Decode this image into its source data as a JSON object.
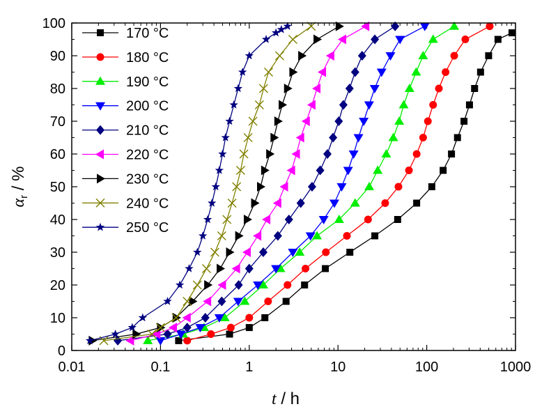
{
  "chart_data": {
    "type": "line",
    "xlabel": {
      "symbol": "t",
      "unit": " / h"
    },
    "ylabel": {
      "symbol": "α",
      "subscript": "r",
      "unit": " / %"
    },
    "xscale": "log",
    "xlim": [
      0.01,
      1000
    ],
    "ylim": [
      0,
      100
    ],
    "x_ticks": [
      "0.01",
      "0.1",
      "1",
      "10",
      "100",
      "1000"
    ],
    "y_ticks": [
      "0",
      "10",
      "20",
      "30",
      "40",
      "50",
      "60",
      "70",
      "80",
      "90",
      "100"
    ],
    "grid": false,
    "legend": "top-left",
    "series": [
      {
        "name": "170 °C",
        "color": "#000000",
        "marker": "square",
        "x": [
          0.16,
          0.6,
          1.0,
          1.5,
          2.6,
          4.2,
          7.2,
          13.6,
          26,
          47,
          77,
          114,
          153,
          190,
          222,
          263,
          303,
          346,
          404,
          498,
          635,
          913
        ],
        "y": [
          3,
          5,
          7,
          10,
          15,
          20,
          25,
          30,
          35,
          40,
          45,
          50,
          55,
          60,
          65,
          70,
          75,
          80,
          85,
          90,
          95,
          97
        ]
      },
      {
        "name": "180 °C",
        "color": "#ff0000",
        "marker": "circle",
        "x": [
          0.2,
          0.37,
          0.62,
          1.0,
          1.63,
          2.7,
          4.3,
          7.3,
          12.6,
          21.8,
          34,
          48,
          63,
          77,
          91,
          103,
          118,
          137,
          163,
          204,
          272,
          512
        ],
        "y": [
          3,
          5,
          7,
          10,
          15,
          20,
          25,
          30,
          35,
          40,
          45,
          50,
          55,
          60,
          65,
          70,
          75,
          80,
          85,
          90,
          95,
          99
        ]
      },
      {
        "name": "190 °C",
        "color": "#00ee00",
        "marker": "triangle-up",
        "x": [
          0.072,
          0.18,
          0.31,
          0.53,
          0.89,
          1.44,
          2.25,
          3.7,
          5.8,
          10.3,
          15.6,
          22.5,
          28,
          35,
          42,
          49,
          55,
          64,
          76,
          91,
          118,
          204
        ],
        "y": [
          3,
          5,
          7,
          10,
          15,
          20,
          25,
          30,
          35,
          40,
          45,
          50,
          55,
          60,
          65,
          70,
          75,
          80,
          85,
          90,
          95,
          99
        ]
      },
      {
        "name": "200 °C",
        "color": "#0000ff",
        "marker": "triangle-down",
        "x": [
          0.1,
          0.17,
          0.28,
          0.46,
          0.75,
          1.25,
          2.0,
          3.1,
          4.9,
          6.9,
          9.1,
          11,
          13,
          15,
          17,
          19.5,
          22.4,
          25.9,
          31,
          39,
          50,
          95
        ],
        "y": [
          3,
          5,
          7,
          10,
          15,
          20,
          25,
          30,
          35,
          40,
          45,
          50,
          55,
          60,
          65,
          70,
          75,
          80,
          85,
          90,
          95,
          99
        ]
      },
      {
        "name": "210 °C",
        "color": "#000080",
        "marker": "diamond",
        "x": [
          0.033,
          0.12,
          0.2,
          0.32,
          0.49,
          0.76,
          1.0,
          1.44,
          2.1,
          2.8,
          3.8,
          5.1,
          6.3,
          7.6,
          8.8,
          10.2,
          11.5,
          13.5,
          15.6,
          18.7,
          26,
          44
        ],
        "y": [
          3,
          5,
          7,
          10,
          15,
          20,
          25,
          30,
          35,
          40,
          45,
          50,
          55,
          60,
          65,
          70,
          75,
          80,
          85,
          90,
          95,
          99
        ]
      },
      {
        "name": "220 °C",
        "color": "#ff00ff",
        "marker": "triangle-left",
        "x": [
          0.046,
          0.091,
          0.14,
          0.2,
          0.34,
          0.5,
          0.72,
          0.95,
          1.25,
          1.58,
          2.1,
          2.5,
          3.0,
          3.4,
          3.8,
          4.4,
          5.1,
          5.8,
          6.7,
          8.3,
          11.3,
          20.6
        ],
        "y": [
          3,
          5,
          7,
          10,
          15,
          20,
          25,
          30,
          35,
          40,
          45,
          50,
          55,
          60,
          65,
          70,
          75,
          80,
          85,
          90,
          95,
          99
        ]
      },
      {
        "name": "230 °C",
        "color": "#000000",
        "marker": "triangle-right",
        "x": [
          0.017,
          0.053,
          0.1,
          0.15,
          0.23,
          0.34,
          0.47,
          0.6,
          0.76,
          0.95,
          1.15,
          1.34,
          1.49,
          1.7,
          1.9,
          2.1,
          2.35,
          2.7,
          3.1,
          3.9,
          5.8,
          10.3
        ],
        "y": [
          3,
          5,
          7,
          10,
          15,
          20,
          25,
          30,
          35,
          40,
          45,
          50,
          55,
          60,
          65,
          70,
          75,
          80,
          85,
          90,
          95,
          99
        ]
      },
      {
        "name": "240 °C",
        "color": "#808000",
        "marker": "x",
        "x": [
          0.023,
          0.08,
          0.1,
          0.15,
          0.2,
          0.26,
          0.33,
          0.41,
          0.49,
          0.56,
          0.64,
          0.72,
          0.8,
          0.87,
          0.97,
          1.1,
          1.3,
          1.45,
          1.65,
          2.2,
          3.1,
          5.0
        ],
        "y": [
          3,
          5,
          7,
          10,
          15,
          20,
          25,
          30,
          35,
          40,
          45,
          50,
          55,
          60,
          65,
          70,
          75,
          80,
          85,
          90,
          95,
          99
        ]
      },
      {
        "name": "250 °C",
        "color": "#000080",
        "marker": "star",
        "x": [
          0.016,
          0.031,
          0.048,
          0.063,
          0.12,
          0.165,
          0.21,
          0.26,
          0.3,
          0.34,
          0.38,
          0.42,
          0.46,
          0.5,
          0.54,
          0.6,
          0.67,
          0.75,
          0.84,
          1.0,
          1.55,
          2.0,
          2.3,
          2.7
        ],
        "y": [
          3,
          5,
          7,
          10,
          15,
          20,
          25,
          30,
          35,
          40,
          45,
          50,
          55,
          60,
          65,
          70,
          75,
          80,
          85,
          90,
          95,
          97,
          98,
          99
        ]
      }
    ]
  }
}
